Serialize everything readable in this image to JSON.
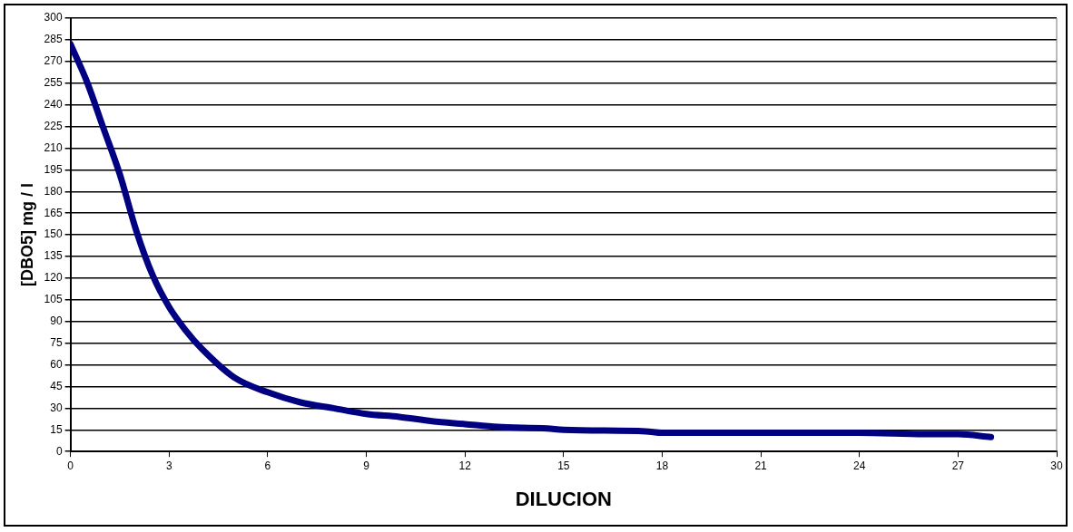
{
  "chart_data": {
    "type": "line",
    "xlabel": "DILUCION",
    "ylabel": "[DBO5] mg / l",
    "x": [
      0,
      0.5,
      1,
      1.5,
      2,
      2.5,
      3,
      3.5,
      4,
      5,
      6,
      7,
      8,
      9,
      10,
      11,
      12,
      13,
      14.5,
      15,
      17.5,
      18,
      21,
      24,
      26,
      27,
      28
    ],
    "series": [
      {
        "color": "#000080",
        "values": [
          282,
          256,
          224,
          192,
          153,
          122,
          100,
          84,
          71,
          51,
          41,
          34,
          30,
          26,
          24,
          21,
          19,
          17,
          16,
          15,
          14,
          13,
          13,
          13,
          12,
          12,
          10
        ]
      }
    ],
    "xlim": [
      0,
      30
    ],
    "xticks": [
      0,
      3,
      6,
      9,
      12,
      15,
      18,
      21,
      24,
      27,
      30
    ],
    "ylim": [
      0,
      300
    ],
    "yticks": [
      0,
      15,
      30,
      45,
      60,
      75,
      90,
      105,
      120,
      135,
      150,
      165,
      180,
      195,
      210,
      225,
      240,
      255,
      270,
      285,
      300
    ],
    "grid": "y",
    "legend": false,
    "marker": "none",
    "line_style": "solid"
  }
}
